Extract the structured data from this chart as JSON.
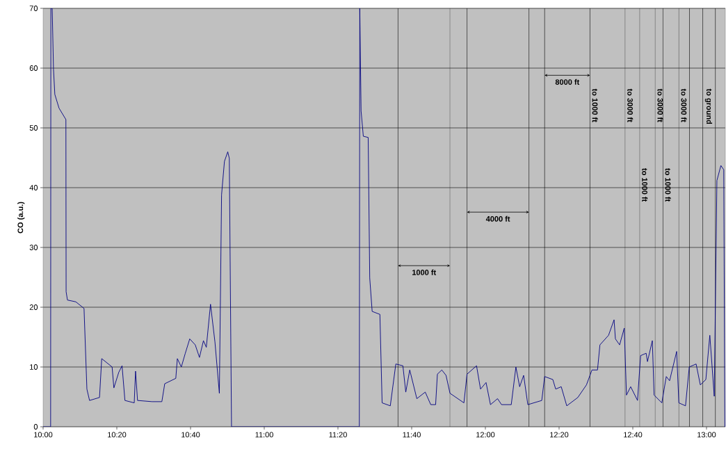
{
  "chart_data": {
    "type": "line",
    "ylabel": "CO (a.u.)",
    "x": [
      10.0,
      10.034,
      10.035,
      10.041,
      10.047,
      10.053,
      10.072,
      10.103,
      10.104,
      10.11,
      10.148,
      10.185,
      10.198,
      10.21,
      10.255,
      10.265,
      10.312,
      10.32,
      10.342,
      10.357,
      10.37,
      10.412,
      10.418,
      10.427,
      10.493,
      10.537,
      10.55,
      10.6,
      10.607,
      10.625,
      10.643,
      10.663,
      10.688,
      10.707,
      10.725,
      10.738,
      10.757,
      10.777,
      10.797,
      10.807,
      10.82,
      10.835,
      10.842,
      10.852,
      11.43,
      11.432,
      11.438,
      11.448,
      11.47,
      11.477,
      11.488,
      11.523,
      11.533,
      11.57,
      11.595,
      11.627,
      11.64,
      11.658,
      11.69,
      11.728,
      11.753,
      11.775,
      11.783,
      11.803,
      11.822,
      11.84,
      11.903,
      11.917,
      11.96,
      11.978,
      12.003,
      12.023,
      12.055,
      12.073,
      12.117,
      12.138,
      12.155,
      12.173,
      12.192,
      12.255,
      12.268,
      12.305,
      12.318,
      12.343,
      12.368,
      12.418,
      12.457,
      12.482,
      12.507,
      12.518,
      12.557,
      12.582,
      12.588,
      12.607,
      12.628,
      12.638,
      12.657,
      12.688,
      12.702,
      12.727,
      12.733,
      12.755,
      12.763,
      12.798,
      12.818,
      12.833,
      12.865,
      12.875,
      12.905,
      12.922,
      12.953,
      12.972,
      12.997,
      13.015,
      13.035,
      13.047,
      13.065,
      13.078,
      13.083
    ],
    "series": [
      {
        "color": "#000080",
        "values": [
          0,
          0,
          70,
          70,
          59.8,
          55.6,
          53.3,
          51.4,
          22.6,
          21.2,
          20.9,
          19.8,
          6.3,
          4.4,
          4.9,
          11.4,
          10,
          6.5,
          9.1,
          10.2,
          4.4,
          4.0,
          9.3,
          4.4,
          4.2,
          4.2,
          7.2,
          8.1,
          11.4,
          10,
          12.3,
          14.7,
          13.7,
          11.6,
          14.4,
          13.3,
          20.5,
          14.2,
          5.6,
          38.8,
          44.4,
          46,
          44.9,
          0,
          0,
          70,
          52.8,
          48.6,
          48.4,
          24.9,
          19.3,
          18.8,
          4.0,
          3.5,
          10.5,
          10.2,
          5.8,
          9.5,
          4.7,
          5.8,
          3.7,
          3.7,
          8.8,
          9.5,
          8.6,
          5.6,
          4.0,
          8.8,
          10.2,
          6.3,
          7.4,
          3.7,
          4.7,
          3.7,
          3.7,
          10.0,
          6.7,
          8.6,
          3.7,
          4.4,
          8.4,
          7.9,
          6.3,
          6.7,
          3.5,
          4.9,
          7.0,
          9.5,
          9.5,
          13.7,
          15.3,
          17.9,
          14.7,
          13.7,
          16.5,
          5.3,
          6.7,
          4.4,
          11.9,
          12.3,
          10.9,
          14.4,
          5.3,
          4.0,
          8.4,
          7.7,
          12.6,
          4.0,
          3.5,
          10.0,
          10.5,
          7.0,
          7.9,
          15.3,
          5.1,
          41.2,
          43.7,
          43.0,
          0
        ]
      }
    ],
    "xlim": [
      10,
      13.085
    ],
    "xticks": [
      {
        "value": 10,
        "label": "10:00"
      },
      {
        "value": 10.3333,
        "label": "10:20"
      },
      {
        "value": 10.6667,
        "label": "10:40"
      },
      {
        "value": 11,
        "label": "11:00"
      },
      {
        "value": 11.3333,
        "label": "11:20"
      },
      {
        "value": 11.6667,
        "label": "11:40"
      },
      {
        "value": 12,
        "label": "12:00"
      },
      {
        "value": 12.3333,
        "label": "12:20"
      },
      {
        "value": 12.6667,
        "label": "12:40"
      },
      {
        "value": 13,
        "label": "13:00"
      }
    ],
    "ylim": [
      0,
      70
    ],
    "yticks": [
      0,
      10,
      20,
      30,
      40,
      50,
      60,
      70
    ],
    "grid": "y",
    "ref_lines": [
      {
        "axis": "x",
        "value": 11.605,
        "color": "#000000"
      },
      {
        "axis": "x",
        "value": 11.84,
        "color": "#000000"
      },
      {
        "axis": "x",
        "value": 11.917,
        "color": "#000000"
      },
      {
        "axis": "x",
        "value": 12.197,
        "color": "#000000"
      },
      {
        "axis": "x",
        "value": 12.268,
        "color": "#000000"
      },
      {
        "axis": "x",
        "value": 12.473,
        "color": "#000000",
        "label": "to 1000 ft"
      },
      {
        "axis": "x",
        "value": 12.632,
        "color": "#000000",
        "label": "to 3000 ft"
      },
      {
        "axis": "x",
        "value": 12.698,
        "color": "#000000",
        "label": "to 1000 ft"
      },
      {
        "axis": "x",
        "value": 12.768,
        "color": "#000000",
        "label": "to 3000 ft"
      },
      {
        "axis": "x",
        "value": 12.803,
        "color": "#000000",
        "label": "to 1000 ft"
      },
      {
        "axis": "x",
        "value": 12.875,
        "color": "#000000",
        "label": "to 3000 ft"
      },
      {
        "axis": "x",
        "value": 12.923,
        "color": "#000000"
      },
      {
        "axis": "x",
        "value": 12.983,
        "color": "#000000",
        "label": "to ground"
      },
      {
        "axis": "x",
        "value": 13.04,
        "color": "#000000"
      }
    ],
    "annotations": [
      "1000 ft",
      "4000 ft",
      "8000 ft"
    ]
  }
}
